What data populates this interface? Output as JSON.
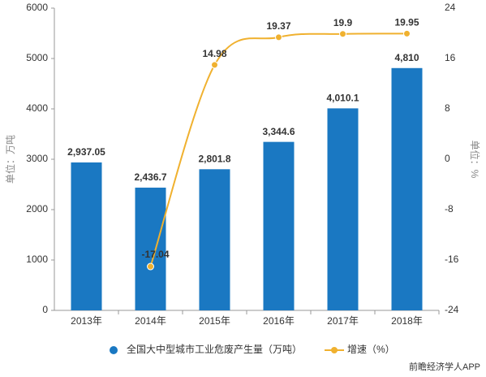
{
  "chart_data": {
    "type": "bar_line",
    "categories": [
      "2013年",
      "2014年",
      "2015年",
      "2016年",
      "2017年",
      "2018年"
    ],
    "series": [
      {
        "name": "全国大中型城市工业危废产生量（万吨）",
        "type": "bar",
        "color": "#1a78c2",
        "values": [
          2937.05,
          2436.7,
          2801.8,
          3344.6,
          4010.1,
          4810
        ],
        "value_labels": [
          "2,937.05",
          "2,436.7",
          "2,801.8",
          "3,344.6",
          "4,010.1",
          "4,810"
        ]
      },
      {
        "name": "增速（%）",
        "type": "line",
        "axis": "y2",
        "color": "#f0b12f",
        "values": [
          null,
          -17.04,
          14.98,
          19.37,
          19.9,
          19.95
        ]
      }
    ],
    "ylabel": "单位：万吨",
    "y2label": "单位：%",
    "ylim": [
      0,
      6000
    ],
    "yticks": [
      0,
      1000,
      2000,
      3000,
      4000,
      5000,
      6000
    ],
    "y2lim": [
      -24,
      24
    ],
    "y2ticks": [
      -24,
      -16,
      -8,
      0,
      8,
      16,
      24
    ],
    "grid": false,
    "source": "前瞻经济学人APP"
  }
}
